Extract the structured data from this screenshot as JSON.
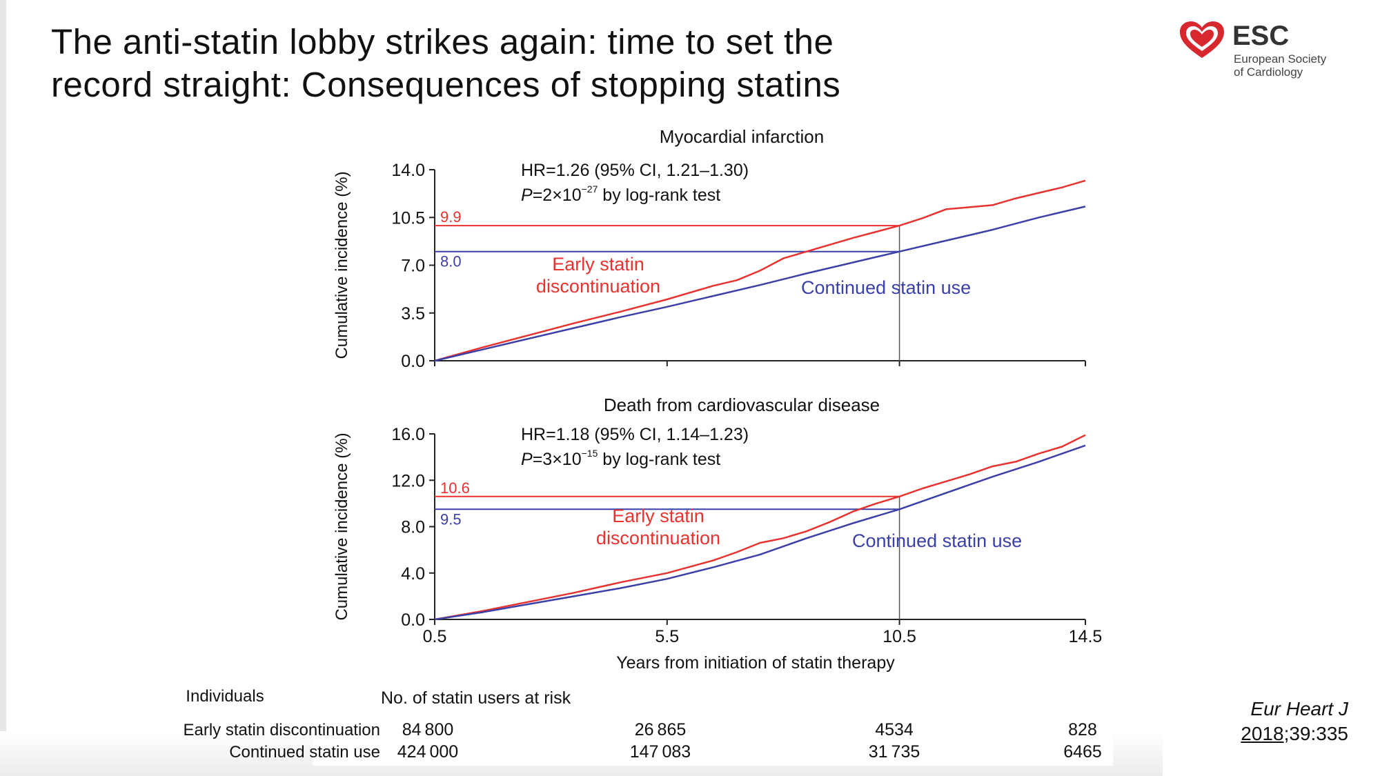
{
  "slide": {
    "title_line1": "The anti-statin lobby strikes again: time to set the",
    "title_line2": "record straight:  Consequences of stopping statins",
    "logo": {
      "name": "ESC",
      "subtitle_line1": "European Society",
      "subtitle_line2": "of Cardiology",
      "icon": "heart-icon",
      "color": "#d7282f"
    },
    "citation": {
      "journal": "Eur Heart J",
      "year": "2018",
      "rest": ";39:335"
    }
  },
  "colors": {
    "early": "#e8322f",
    "continued": "#3b3fa8",
    "refline": "#555555"
  },
  "chart_data": [
    {
      "type": "line",
      "title": "Myocardial infarction",
      "ylabel": "Cumulative incidence (%)",
      "xlabel": "",
      "xlim": [
        0.5,
        14.5
      ],
      "ylim": [
        0,
        14
      ],
      "yticks": [
        "0.0",
        "3.5",
        "7.0",
        "10.5",
        "14.0"
      ],
      "xticks": [
        0.5,
        5.5,
        10.5,
        14.5
      ],
      "xtick_labels_shown": false,
      "annotation_hr": "HR=1.26 (95% CI, 1.21–1.30)",
      "annotation_p_prefix": "P",
      "annotation_p_mid": "=2×10",
      "annotation_p_exp": "−27",
      "annotation_p_suffix": " by log-rank test",
      "reference_x": 10.5,
      "reference_values": [
        {
          "label": "9.9",
          "value": 9.9,
          "series": "early"
        },
        {
          "label": "8.0",
          "value": 8.0,
          "series": "continued"
        }
      ],
      "series": [
        {
          "name": "Early statin discontinuation",
          "key": "early",
          "x": [
            0.5,
            1.5,
            2.5,
            3.5,
            4.5,
            5.5,
            6.5,
            7.0,
            7.5,
            8.0,
            8.5,
            9.0,
            9.5,
            10.0,
            10.5,
            11.0,
            11.5,
            12.0,
            12.5,
            13.0,
            13.5,
            14.0,
            14.5
          ],
          "y": [
            0,
            0.95,
            1.85,
            2.75,
            3.6,
            4.5,
            5.5,
            5.9,
            6.6,
            7.5,
            8.0,
            8.5,
            9.0,
            9.45,
            9.9,
            10.45,
            11.1,
            11.25,
            11.4,
            11.9,
            12.3,
            12.7,
            13.2
          ]
        },
        {
          "name": "Continued statin use",
          "key": "continued",
          "x": [
            0.5,
            1.5,
            2.5,
            3.5,
            4.5,
            5.5,
            6.5,
            7.5,
            8.5,
            9.5,
            10.5,
            11.5,
            12.5,
            13.5,
            14.5
          ],
          "y": [
            0,
            0.8,
            1.6,
            2.4,
            3.2,
            3.95,
            4.75,
            5.55,
            6.4,
            7.2,
            8.0,
            8.8,
            9.6,
            10.5,
            11.3
          ]
        }
      ]
    },
    {
      "type": "line",
      "title": "Death from cardiovascular disease",
      "ylabel": "Cumulative incidence (%)",
      "xlabel": "Years from initiation of statin therapy",
      "xlim": [
        0.5,
        14.5
      ],
      "ylim": [
        0,
        16
      ],
      "yticks": [
        "0.0",
        "4.0",
        "8.0",
        "12.0",
        "16.0"
      ],
      "xticks": [
        0.5,
        5.5,
        10.5,
        14.5
      ],
      "xtick_labels": [
        "0.5",
        "5.5",
        "10.5",
        "14.5"
      ],
      "xtick_labels_shown": true,
      "annotation_hr": "HR=1.18 (95% CI, 1.14–1.23)",
      "annotation_p_prefix": "P",
      "annotation_p_mid": "=3×10",
      "annotation_p_exp": "−15",
      "annotation_p_suffix": " by log-rank test",
      "reference_x": 10.5,
      "reference_values": [
        {
          "label": "10.6",
          "value": 10.6,
          "series": "early"
        },
        {
          "label": "9.5",
          "value": 9.5,
          "series": "continued"
        }
      ],
      "series": [
        {
          "name": "Early statin discontinuation",
          "key": "early",
          "x": [
            0.5,
            1.5,
            2.5,
            3.5,
            4.5,
            5.5,
            6.5,
            7.0,
            7.5,
            8.0,
            8.5,
            9.0,
            9.5,
            10.0,
            10.5,
            11.0,
            11.5,
            12.0,
            12.5,
            13.0,
            13.5,
            14.0,
            14.5
          ],
          "y": [
            0,
            0.7,
            1.5,
            2.3,
            3.2,
            4.0,
            5.1,
            5.8,
            6.6,
            7.0,
            7.6,
            8.4,
            9.3,
            10.0,
            10.6,
            11.3,
            11.9,
            12.5,
            13.2,
            13.6,
            14.3,
            14.9,
            15.9
          ]
        },
        {
          "name": "Continued statin use",
          "key": "continued",
          "x": [
            0.5,
            1.5,
            2.5,
            3.5,
            4.5,
            5.5,
            6.5,
            7.5,
            8.5,
            9.5,
            10.5,
            11.5,
            12.5,
            13.5,
            14.5
          ],
          "y": [
            0,
            0.6,
            1.3,
            2.0,
            2.7,
            3.5,
            4.5,
            5.6,
            7.0,
            8.3,
            9.5,
            10.9,
            12.3,
            13.6,
            15.0
          ]
        }
      ]
    }
  ],
  "risk_table": {
    "col_header_left": "Individuals",
    "col_header_right": "No. of statin users at risk",
    "rows": [
      {
        "label": "Early statin discontinuation",
        "values": [
          "84 800",
          "26 865",
          "4534",
          "828"
        ]
      },
      {
        "label": "Continued statin use",
        "values": [
          "424 000",
          "147 083",
          "31 735",
          "6465"
        ]
      }
    ]
  }
}
